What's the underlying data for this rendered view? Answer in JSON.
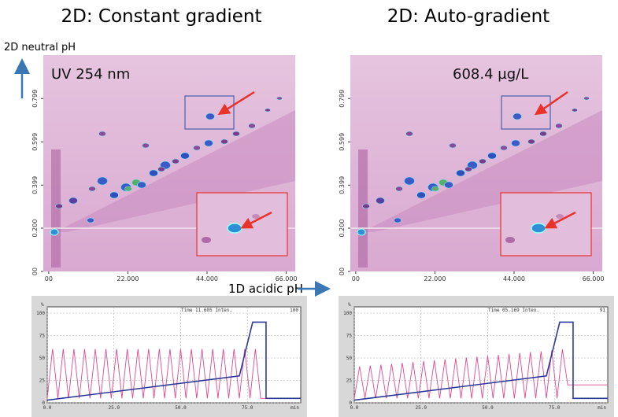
{
  "panels": [
    {
      "title": "2D: Constant gradient",
      "heatmap": {
        "annotation": "UV 254 nm",
        "xlim": [
          -1.5,
          68.5
        ],
        "ylim": [
          0,
          1
        ],
        "xticks": [
          {
            "value": 0,
            "label": "00"
          },
          {
            "value": 22,
            "label": "22.000"
          },
          {
            "value": 44,
            "label": "44.000"
          },
          {
            "value": 66,
            "label": "66.000"
          }
        ],
        "yticks": [
          {
            "value": 0,
            "label": "00"
          },
          {
            "value": 0.2,
            "label": "0.200"
          },
          {
            "value": 0.399,
            "label": "0.399"
          },
          {
            "value": 0.599,
            "label": "0.599"
          },
          {
            "value": 0.799,
            "label": "0.799"
          }
        ]
      },
      "gradient": {
        "header": "Time 11.605  Inten.",
        "header_value": "100",
        "ylabel": "%",
        "xlabel": "min",
        "xlim": [
          0,
          95
        ],
        "ylim": [
          0,
          100
        ],
        "yticks": [
          0,
          25,
          50,
          75,
          100
        ],
        "xticks": [
          {
            "value": 0,
            "label": "0.0"
          },
          {
            "value": 25,
            "label": "25.0"
          },
          {
            "value": 50,
            "label": "50.0"
          },
          {
            "value": 75,
            "label": "75.0"
          }
        ],
        "series": [
          {
            "color": "#e0488f",
            "x": [
              0,
              2,
              4,
              6,
              8,
              10,
              12,
              14,
              16,
              18,
              20,
              22,
              24,
              26,
              28,
              30,
              32,
              34,
              36,
              38,
              40,
              42,
              44,
              46,
              48,
              50,
              52,
              54,
              56,
              58,
              60,
              62,
              64,
              66,
              68,
              70,
              72,
              74,
              76,
              78,
              80,
              95
            ],
            "values": [
              5,
              60,
              5,
              60,
              5,
              60,
              5,
              60,
              5,
              60,
              5,
              60,
              5,
              60,
              5,
              60,
              5,
              60,
              5,
              60,
              5,
              60,
              5,
              60,
              5,
              60,
              5,
              60,
              5,
              60,
              5,
              60,
              5,
              60,
              5,
              60,
              5,
              60,
              5,
              60,
              5,
              5
            ]
          },
          {
            "color": "#2b3a9a",
            "x": [
              0,
              72,
              77,
              82,
              82,
              95
            ],
            "values": [
              3,
              30,
              90,
              90,
              5,
              5
            ]
          }
        ]
      }
    },
    {
      "title": "2D: Auto-gradient",
      "heatmap": {
        "annotation": "608.4 µg/L",
        "xlim": [
          -1.5,
          68.5
        ],
        "ylim": [
          0,
          1
        ],
        "xticks": [
          {
            "value": 0,
            "label": "00"
          },
          {
            "value": 22,
            "label": "22.000"
          },
          {
            "value": 44,
            "label": "44.000"
          },
          {
            "value": 66,
            "label": "66.000"
          }
        ],
        "yticks": [
          {
            "value": 0,
            "label": "00"
          },
          {
            "value": 0.2,
            "label": "0.200"
          },
          {
            "value": 0.399,
            "label": "0.399"
          },
          {
            "value": 0.599,
            "label": "0.599"
          },
          {
            "value": 0.799,
            "label": "0.799"
          }
        ]
      },
      "gradient": {
        "header": "Time 05.169  Inten.",
        "header_value": "91",
        "ylabel": "%",
        "xlabel": "min",
        "xlim": [
          0,
          95
        ],
        "ylim": [
          0,
          100
        ],
        "yticks": [
          0,
          25,
          50,
          75,
          100
        ],
        "xticks": [
          {
            "value": 0,
            "label": "0.0"
          },
          {
            "value": 25,
            "label": "25.0"
          },
          {
            "value": 50,
            "label": "50.0"
          },
          {
            "value": 75,
            "label": "75.0"
          }
        ],
        "series": [
          {
            "color": "#e0488f",
            "x": [
              0,
              2,
              4,
              6,
              8,
              10,
              12,
              14,
              16,
              18,
              20,
              22,
              24,
              26,
              28,
              30,
              32,
              34,
              36,
              38,
              40,
              42,
              44,
              46,
              48,
              50,
              52,
              54,
              56,
              58,
              60,
              62,
              64,
              66,
              68,
              70,
              72,
              74,
              76,
              78,
              80,
              95
            ],
            "values": [
              5,
              40.5,
              5,
              41.5,
              5,
              42.5,
              5,
              43.5,
              5,
              44.5,
              5,
              45.5,
              5,
              46.5,
              5,
              47.5,
              5,
              48.5,
              5,
              49.5,
              5,
              50.5,
              5,
              51.5,
              5,
              52.5,
              5,
              53.5,
              5,
              54.5,
              5,
              55.5,
              5,
              56.5,
              5,
              57.5,
              5,
              58.5,
              5,
              59.5,
              20,
              20
            ]
          },
          {
            "color": "#2b3a9a",
            "x": [
              0,
              72,
              77,
              82,
              82,
              95
            ],
            "values": [
              3,
              30,
              90,
              90,
              5,
              5
            ]
          }
        ]
      }
    }
  ],
  "ylabel": "2D neutral pH",
  "xlabel": "1D acidic pH"
}
